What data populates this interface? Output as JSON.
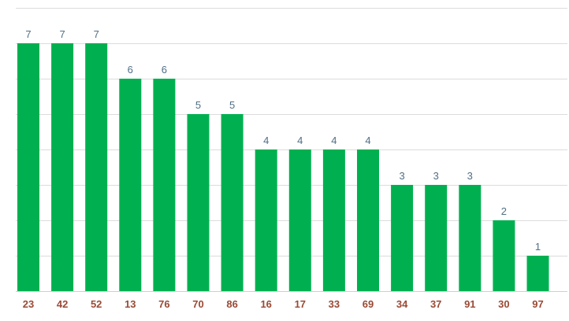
{
  "colors": {
    "bar": "#00b050",
    "value_label": "#4f6f86",
    "tick_label": "#9a4a35",
    "grid": "#dcdcdc"
  },
  "chart_data": {
    "type": "bar",
    "categories": [
      "23",
      "42",
      "52",
      "13",
      "76",
      "70",
      "86",
      "16",
      "17",
      "33",
      "69",
      "34",
      "37",
      "91",
      "30",
      "97"
    ],
    "values": [
      7,
      7,
      7,
      6,
      6,
      5,
      5,
      4,
      4,
      4,
      4,
      3,
      3,
      3,
      2,
      1
    ],
    "title": "",
    "xlabel": "",
    "ylabel": "",
    "ylim": [
      0,
      8
    ],
    "grid": true,
    "data_labels": true,
    "legend": "none"
  }
}
